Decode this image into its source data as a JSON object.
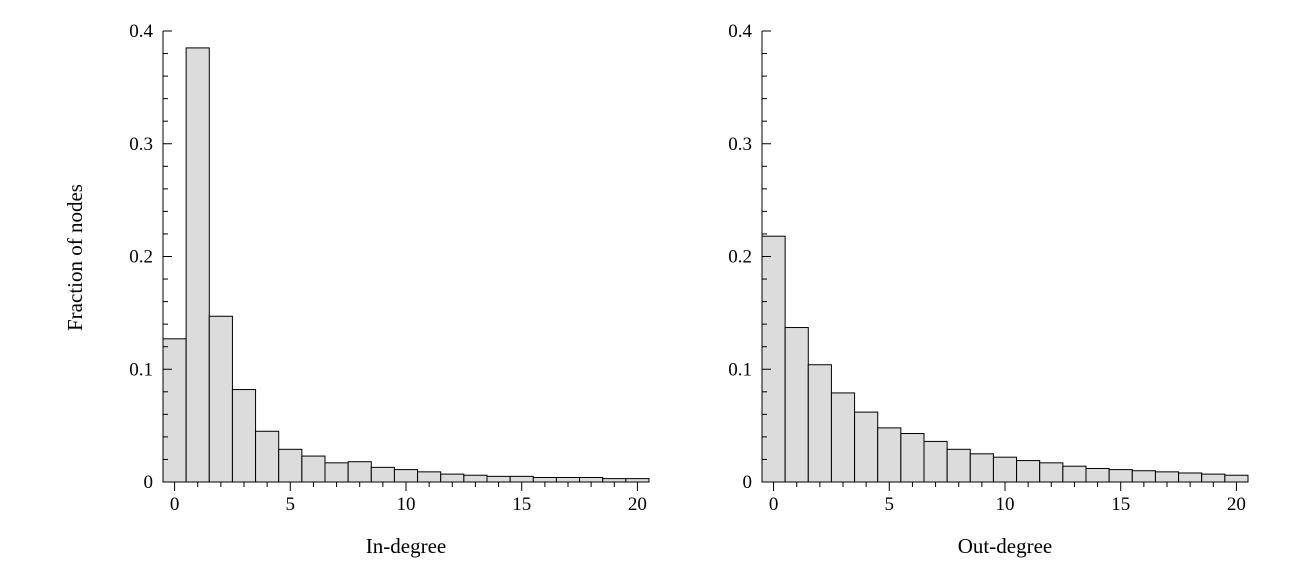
{
  "chart_data": [
    {
      "type": "bar",
      "xlabel": "In-degree",
      "ylabel": "Fraction of nodes",
      "x": [
        0,
        1,
        2,
        3,
        4,
        5,
        6,
        7,
        8,
        9,
        10,
        11,
        12,
        13,
        14,
        15,
        16,
        17,
        18,
        19,
        20
      ],
      "values": [
        0.127,
        0.385,
        0.147,
        0.082,
        0.045,
        0.029,
        0.023,
        0.017,
        0.018,
        0.013,
        0.011,
        0.009,
        0.007,
        0.006,
        0.005,
        0.005,
        0.004,
        0.004,
        0.004,
        0.003,
        0.003
      ],
      "ylim": [
        0,
        0.4
      ],
      "xlim": [
        -0.5,
        20.5
      ],
      "yticks": [
        0,
        0.1,
        0.2,
        0.3,
        0.4
      ],
      "ytick_labels": [
        "0",
        "0.1",
        "0.2",
        "0.3",
        "0.4"
      ],
      "xticks": [
        0,
        5,
        10,
        15,
        20
      ],
      "xtick_labels": [
        "0",
        "5",
        "10",
        "15",
        "20"
      ],
      "grid": false,
      "bar_color": "#dcdcdc",
      "edge_color": "#000000"
    },
    {
      "type": "bar",
      "xlabel": "Out-degree",
      "ylabel": "",
      "x": [
        0,
        1,
        2,
        3,
        4,
        5,
        6,
        7,
        8,
        9,
        10,
        11,
        12,
        13,
        14,
        15,
        16,
        17,
        18,
        19,
        20
      ],
      "values": [
        0.218,
        0.137,
        0.104,
        0.079,
        0.062,
        0.048,
        0.043,
        0.036,
        0.029,
        0.025,
        0.022,
        0.019,
        0.017,
        0.014,
        0.012,
        0.011,
        0.01,
        0.009,
        0.008,
        0.007,
        0.006
      ],
      "ylim": [
        0,
        0.4
      ],
      "xlim": [
        -0.5,
        20.5
      ],
      "yticks": [
        0,
        0.1,
        0.2,
        0.3,
        0.4
      ],
      "ytick_labels": [
        "0",
        "0.1",
        "0.2",
        "0.3",
        "0.4"
      ],
      "xticks": [
        0,
        5,
        10,
        15,
        20
      ],
      "xtick_labels": [
        "0",
        "5",
        "10",
        "15",
        "20"
      ],
      "grid": false,
      "bar_color": "#dcdcdc",
      "edge_color": "#000000"
    }
  ]
}
